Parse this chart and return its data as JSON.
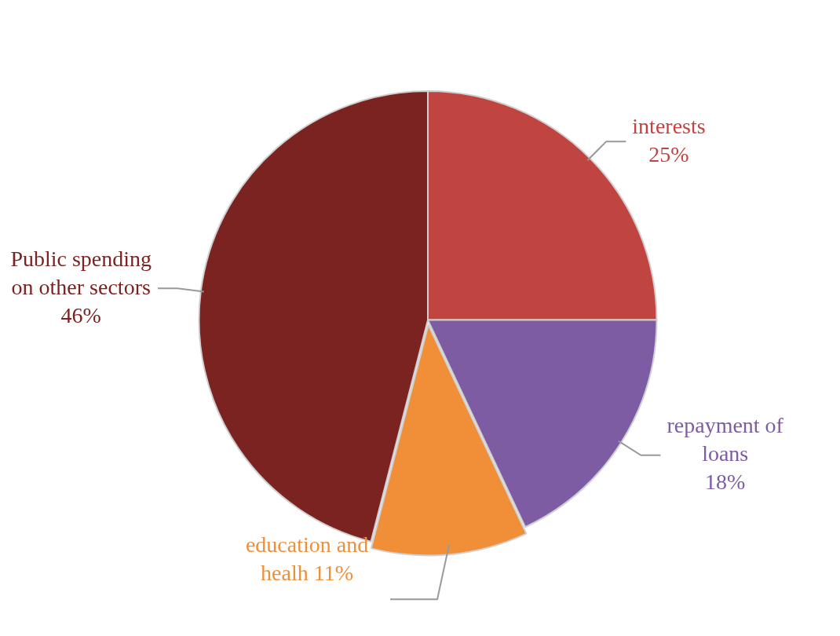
{
  "chart_data": {
    "type": "pie",
    "categories": [
      "interests",
      "repayment of loans",
      "education and healh",
      "Public spending on other sectors"
    ],
    "values": [
      25,
      18,
      11,
      46
    ],
    "value_labels": [
      "25%",
      "18%",
      "11%",
      "46%"
    ],
    "colors": [
      "#c0443f",
      "#7d5ca3",
      "#f08f38",
      "#7a2321"
    ],
    "legend": false
  }
}
